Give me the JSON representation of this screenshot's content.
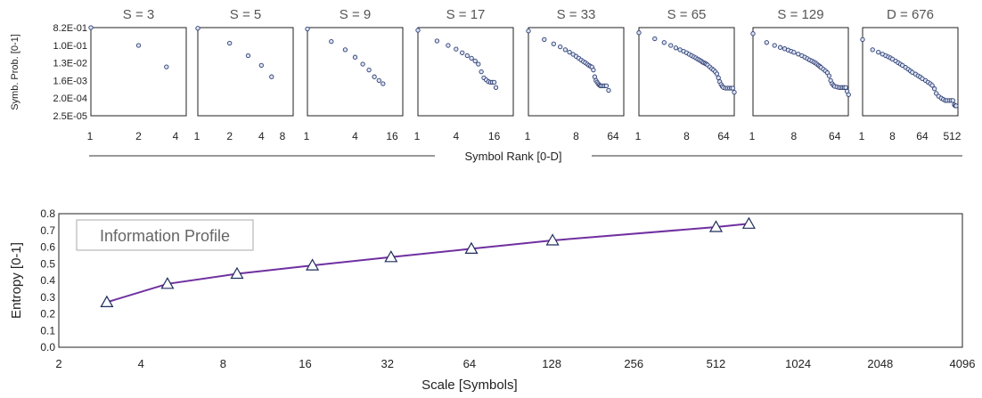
{
  "chart_data": [
    {
      "type": "scatter",
      "title": "S = 3",
      "x_scale": "log2",
      "y_scale": "log",
      "xlim": [
        1,
        4
      ],
      "x_ticks": [
        "1",
        "2",
        "4"
      ],
      "points": [
        [
          1,
          0.82
        ],
        [
          2,
          0.1
        ],
        [
          3,
          0.008
        ]
      ]
    },
    {
      "type": "scatter",
      "title": "S = 5",
      "x_scale": "log2",
      "y_scale": "log",
      "xlim": [
        1,
        8
      ],
      "x_ticks": [
        "1",
        "2",
        "4",
        "8"
      ],
      "points": [
        [
          1,
          0.75
        ],
        [
          2,
          0.13
        ],
        [
          3,
          0.03
        ],
        [
          4,
          0.0095
        ],
        [
          5,
          0.0025
        ]
      ]
    },
    {
      "type": "scatter",
      "title": "S = 9",
      "x_scale": "log2",
      "y_scale": "log",
      "xlim": [
        1,
        16
      ],
      "x_ticks": [
        "1",
        "4",
        "16"
      ],
      "points": [
        [
          1,
          0.7
        ],
        [
          2,
          0.16
        ],
        [
          3,
          0.06
        ],
        [
          4,
          0.025
        ],
        [
          5,
          0.011
        ],
        [
          6,
          0.0055
        ],
        [
          7,
          0.0025
        ],
        [
          8,
          0.0016
        ],
        [
          9,
          0.0011
        ]
      ]
    },
    {
      "type": "scatter",
      "title": "S = 17",
      "x_scale": "log2",
      "y_scale": "log",
      "xlim": [
        1,
        32
      ],
      "x_ticks": [
        "1",
        "4",
        "16"
      ],
      "points": [
        [
          1,
          0.6
        ],
        [
          2,
          0.17
        ],
        [
          3,
          0.1
        ],
        [
          4,
          0.065
        ],
        [
          5,
          0.042
        ],
        [
          6,
          0.03
        ],
        [
          7,
          0.022
        ],
        [
          8,
          0.016
        ],
        [
          9,
          0.011
        ],
        [
          10,
          0.0045
        ],
        [
          11,
          0.0022
        ],
        [
          12,
          0.0017
        ],
        [
          13,
          0.0014
        ],
        [
          14,
          0.0013
        ],
        [
          15,
          0.0013
        ],
        [
          16,
          0.0013
        ],
        [
          17,
          0.0007
        ]
      ]
    },
    {
      "type": "scatter",
      "title": "S = 33",
      "x_scale": "log2",
      "y_scale": "log",
      "xlim": [
        1,
        64
      ],
      "x_ticks": [
        "1",
        "8",
        "64"
      ],
      "points": [
        [
          1,
          0.55
        ],
        [
          2,
          0.2
        ],
        [
          3,
          0.12
        ],
        [
          4,
          0.085
        ],
        [
          5,
          0.06
        ],
        [
          6,
          0.045
        ],
        [
          7,
          0.035
        ],
        [
          8,
          0.028
        ],
        [
          9,
          0.022
        ],
        [
          10,
          0.018
        ],
        [
          11,
          0.015
        ],
        [
          12,
          0.013
        ],
        [
          13,
          0.011
        ],
        [
          14,
          0.0095
        ],
        [
          15,
          0.0085
        ],
        [
          16,
          0.0078
        ],
        [
          17,
          0.0055
        ],
        [
          18,
          0.0025
        ],
        [
          19,
          0.0016
        ],
        [
          20,
          0.0013
        ],
        [
          21,
          0.0011
        ],
        [
          22,
          0.00095
        ],
        [
          23,
          0.00085
        ],
        [
          24,
          0.00085
        ],
        [
          26,
          0.00085
        ],
        [
          28,
          0.00085
        ],
        [
          30,
          0.00085
        ],
        [
          33,
          0.0005
        ]
      ]
    },
    {
      "type": "scatter",
      "title": "S = 65",
      "x_scale": "log2",
      "y_scale": "log",
      "xlim": [
        1,
        64
      ],
      "x_ticks": [
        "1",
        "8",
        "64"
      ],
      "points": [
        [
          1,
          0.45
        ],
        [
          2,
          0.22
        ],
        [
          3,
          0.14
        ],
        [
          4,
          0.1
        ],
        [
          5,
          0.075
        ],
        [
          6,
          0.06
        ],
        [
          7,
          0.05
        ],
        [
          8,
          0.042
        ],
        [
          9,
          0.035
        ],
        [
          10,
          0.03
        ],
        [
          11,
          0.026
        ],
        [
          12,
          0.023
        ],
        [
          13,
          0.02
        ],
        [
          14,
          0.018
        ],
        [
          15,
          0.016
        ],
        [
          16,
          0.014
        ],
        [
          17,
          0.013
        ],
        [
          18,
          0.012
        ],
        [
          19,
          0.011
        ],
        [
          20,
          0.01
        ],
        [
          22,
          0.008
        ],
        [
          24,
          0.0065
        ],
        [
          26,
          0.0055
        ],
        [
          28,
          0.0045
        ],
        [
          30,
          0.0035
        ],
        [
          32,
          0.0022
        ],
        [
          34,
          0.0014
        ],
        [
          36,
          0.001
        ],
        [
          38,
          0.0008
        ],
        [
          40,
          0.0007
        ],
        [
          44,
          0.00065
        ],
        [
          48,
          0.00065
        ],
        [
          52,
          0.00065
        ],
        [
          56,
          0.00065
        ],
        [
          60,
          0.00065
        ],
        [
          64,
          0.0004
        ]
      ]
    },
    {
      "type": "scatter",
      "title": "S = 129",
      "x_scale": "log2",
      "y_scale": "log",
      "xlim": [
        1,
        128
      ],
      "x_ticks": [
        "1",
        "8",
        "64"
      ],
      "points": [
        [
          1,
          0.4
        ],
        [
          2,
          0.14
        ],
        [
          3,
          0.1
        ],
        [
          4,
          0.08
        ],
        [
          5,
          0.068
        ],
        [
          6,
          0.058
        ],
        [
          7,
          0.05
        ],
        [
          8,
          0.044
        ],
        [
          10,
          0.036
        ],
        [
          12,
          0.03
        ],
        [
          14,
          0.025
        ],
        [
          16,
          0.021
        ],
        [
          18,
          0.018
        ],
        [
          20,
          0.016
        ],
        [
          22,
          0.014
        ],
        [
          24,
          0.0125
        ],
        [
          26,
          0.011
        ],
        [
          28,
          0.0095
        ],
        [
          30,
          0.0085
        ],
        [
          32,
          0.0075
        ],
        [
          36,
          0.006
        ],
        [
          40,
          0.005
        ],
        [
          44,
          0.004
        ],
        [
          48,
          0.0028
        ],
        [
          52,
          0.0016
        ],
        [
          56,
          0.0011
        ],
        [
          60,
          0.0009
        ],
        [
          64,
          0.0008
        ],
        [
          72,
          0.00075
        ],
        [
          80,
          0.0007
        ],
        [
          88,
          0.0007
        ],
        [
          96,
          0.0007
        ],
        [
          104,
          0.0007
        ],
        [
          112,
          0.0007
        ],
        [
          120,
          0.00045
        ],
        [
          129,
          0.0003
        ]
      ]
    },
    {
      "type": "scatter",
      "title": "D = 676",
      "x_scale": "log2",
      "y_scale": "log",
      "xlim": [
        1,
        768
      ],
      "x_ticks": [
        "1",
        "8",
        "64",
        "512"
      ],
      "points": [
        [
          1,
          0.2
        ],
        [
          2,
          0.06
        ],
        [
          3,
          0.045
        ],
        [
          4,
          0.036
        ],
        [
          5,
          0.03
        ],
        [
          6,
          0.026
        ],
        [
          7,
          0.023
        ],
        [
          8,
          0.02
        ],
        [
          10,
          0.016
        ],
        [
          12,
          0.013
        ],
        [
          14,
          0.011
        ],
        [
          16,
          0.0095
        ],
        [
          20,
          0.0075
        ],
        [
          24,
          0.006
        ],
        [
          28,
          0.005
        ],
        [
          32,
          0.0042
        ],
        [
          40,
          0.0034
        ],
        [
          48,
          0.0028
        ],
        [
          56,
          0.0024
        ],
        [
          64,
          0.002
        ],
        [
          80,
          0.0016
        ],
        [
          96,
          0.0013
        ],
        [
          112,
          0.0011
        ],
        [
          128,
          0.0009
        ],
        [
          150,
          0.0006
        ],
        [
          170,
          0.00035
        ],
        [
          200,
          0.00025
        ],
        [
          240,
          0.0002
        ],
        [
          280,
          0.00017
        ],
        [
          320,
          0.00015
        ],
        [
          360,
          0.00015
        ],
        [
          420,
          0.00015
        ],
        [
          480,
          0.00015
        ],
        [
          540,
          0.00015
        ],
        [
          600,
          9e-05
        ],
        [
          640,
          8e-05
        ],
        [
          676,
          8e-05
        ]
      ]
    },
    {
      "type": "line",
      "title": "Information Profile",
      "xlabel": "Scale [Symbols]",
      "ylabel": "Entropy [0-1]",
      "x_scale": "log2",
      "xlim": [
        2,
        4096
      ],
      "ylim": [
        0,
        0.8
      ],
      "x_ticks": [
        "2",
        "4",
        "8",
        "16",
        "32",
        "64",
        "128",
        "256",
        "512",
        "1024",
        "2048",
        "4096"
      ],
      "y_ticks": [
        "0.0",
        "0.1",
        "0.2",
        "0.3",
        "0.4",
        "0.5",
        "0.6",
        "0.7",
        "0.8"
      ],
      "grid": false,
      "legend": "none",
      "marker": "triangle",
      "color": "#7030a0",
      "x": [
        3,
        5,
        9,
        17,
        33,
        65,
        129,
        512,
        676
      ],
      "y": [
        0.27,
        0.38,
        0.44,
        0.49,
        0.54,
        0.59,
        0.64,
        0.72,
        0.74
      ]
    }
  ],
  "small_multiples": {
    "ylabel": "Symb. Prob. [0-1]",
    "xlabel": "Symbol Rank [0-D]",
    "y_ticks": [
      "8.2E-01",
      "1.0E-01",
      "1.3E-02",
      "1.6E-03",
      "2.0E-04",
      "2.5E-05"
    ],
    "y_values": [
      0.82,
      0.1,
      0.013,
      0.0016,
      0.0002,
      2.5e-05
    ]
  },
  "colors": {
    "marker_fill": "#dbe3f4",
    "marker_stroke": "#2f3f73",
    "line": "#7030a0",
    "frame": "#222222",
    "title": "#555555",
    "profile_box": "#aaaaaa"
  }
}
